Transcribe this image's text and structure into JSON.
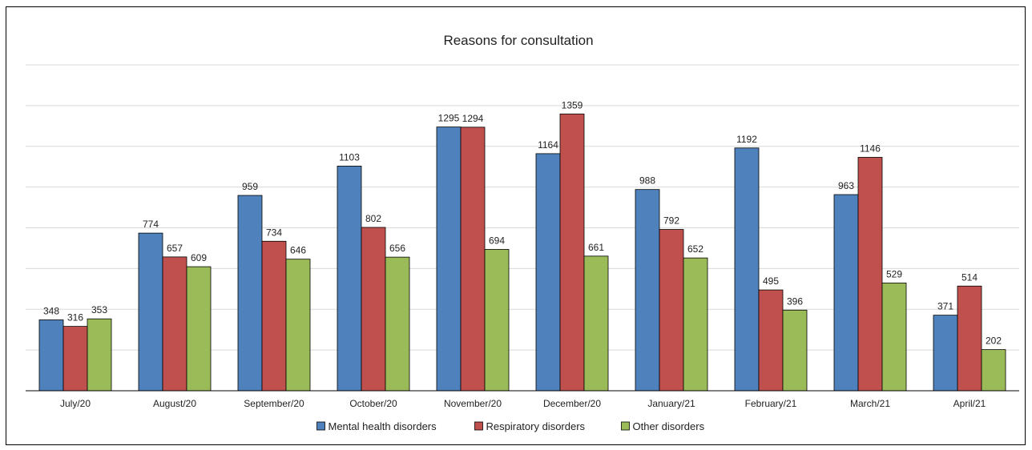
{
  "chart_data": {
    "type": "bar",
    "title": "Reasons for consultation",
    "xlabel": "",
    "ylabel": "",
    "ylim": [
      0,
      1600
    ],
    "grid": true,
    "legend_position": "bottom",
    "categories": [
      "July/20",
      "August/20",
      "September/20",
      "October/20",
      "November/20",
      "December/20",
      "January/21",
      "February/21",
      "March/21",
      "April/21"
    ],
    "series": [
      {
        "name": "Mental health disorders",
        "color": "#4f81bd",
        "values": [
          348,
          774,
          959,
          1103,
          1295,
          1164,
          988,
          1192,
          963,
          371
        ]
      },
      {
        "name": "Respiratory disorders",
        "color": "#c0504d",
        "values": [
          316,
          657,
          734,
          802,
          1294,
          1359,
          792,
          495,
          1146,
          514
        ]
      },
      {
        "name": "Other disorders",
        "color": "#9bbb59",
        "values": [
          353,
          609,
          646,
          656,
          694,
          661,
          652,
          396,
          529,
          202
        ]
      }
    ]
  }
}
